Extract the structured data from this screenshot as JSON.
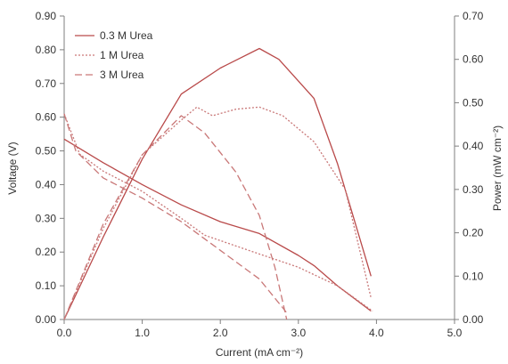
{
  "chart_data": {
    "type": "line",
    "title": "",
    "xlabel": "Current (mA cm⁻²)",
    "ylabel": "Voltage (V)",
    "y2label": "Power (mW cm⁻²)",
    "xlim": [
      0,
      5
    ],
    "ylim": [
      0,
      0.9
    ],
    "y2lim": [
      0,
      0.7
    ],
    "xticks": [
      "0.0",
      "1.0",
      "2.0",
      "3.0",
      "4.0",
      "5.0"
    ],
    "yticks": [
      "0.00",
      "0.10",
      "0.20",
      "0.30",
      "0.40",
      "0.50",
      "0.60",
      "0.70",
      "0.80",
      "0.90"
    ],
    "y2ticks": [
      "0.00",
      "0.10",
      "0.20",
      "0.30",
      "0.40",
      "0.50",
      "0.60",
      "0.70"
    ],
    "grid": false,
    "legend_position": "top-left",
    "series": [
      {
        "name": "0.3 M Urea",
        "color": "#b94a4a",
        "dash": "solid",
        "voltage": [
          [
            0.0,
            0.535
          ],
          [
            0.5,
            0.465
          ],
          [
            1.0,
            0.4
          ],
          [
            1.5,
            0.34
          ],
          [
            2.0,
            0.29
          ],
          [
            2.5,
            0.255
          ],
          [
            3.0,
            0.19
          ],
          [
            3.2,
            0.16
          ],
          [
            3.5,
            0.1
          ],
          [
            3.93,
            0.025
          ]
        ],
        "power": [
          [
            0.0,
            0.0
          ],
          [
            0.5,
            0.19
          ],
          [
            1.0,
            0.37
          ],
          [
            1.5,
            0.52
          ],
          [
            2.0,
            0.58
          ],
          [
            2.5,
            0.625
          ],
          [
            2.75,
            0.6
          ],
          [
            3.0,
            0.55
          ],
          [
            3.2,
            0.51
          ],
          [
            3.5,
            0.36
          ],
          [
            3.93,
            0.1
          ]
        ]
      },
      {
        "name": "1 M Urea",
        "color": "#c97878",
        "dash": "2,2",
        "voltage": [
          [
            0.0,
            0.61
          ],
          [
            0.2,
            0.49
          ],
          [
            0.5,
            0.44
          ],
          [
            1.0,
            0.38
          ],
          [
            1.5,
            0.3
          ],
          [
            1.8,
            0.25
          ],
          [
            2.3,
            0.21
          ],
          [
            3.0,
            0.155
          ],
          [
            3.5,
            0.1
          ],
          [
            3.95,
            0.025
          ]
        ],
        "power": [
          [
            0.0,
            0.0
          ],
          [
            0.5,
            0.21
          ],
          [
            1.0,
            0.38
          ],
          [
            1.5,
            0.46
          ],
          [
            1.7,
            0.49
          ],
          [
            1.9,
            0.47
          ],
          [
            2.2,
            0.485
          ],
          [
            2.5,
            0.49
          ],
          [
            2.8,
            0.47
          ],
          [
            3.2,
            0.41
          ],
          [
            3.6,
            0.3
          ],
          [
            3.93,
            0.05
          ]
        ]
      },
      {
        "name": "3 M Urea",
        "color": "#c97878",
        "dash": "8,4",
        "voltage": [
          [
            0.0,
            0.61
          ],
          [
            0.15,
            0.5
          ],
          [
            0.5,
            0.42
          ],
          [
            1.0,
            0.36
          ],
          [
            1.5,
            0.29
          ],
          [
            2.0,
            0.205
          ],
          [
            2.5,
            0.12
          ],
          [
            2.85,
            0.02
          ]
        ],
        "power": [
          [
            0.0,
            0.0
          ],
          [
            0.5,
            0.22
          ],
          [
            1.0,
            0.38
          ],
          [
            1.5,
            0.47
          ],
          [
            1.8,
            0.43
          ],
          [
            2.2,
            0.34
          ],
          [
            2.5,
            0.24
          ],
          [
            2.7,
            0.12
          ],
          [
            2.85,
            0.0
          ]
        ]
      }
    ]
  }
}
